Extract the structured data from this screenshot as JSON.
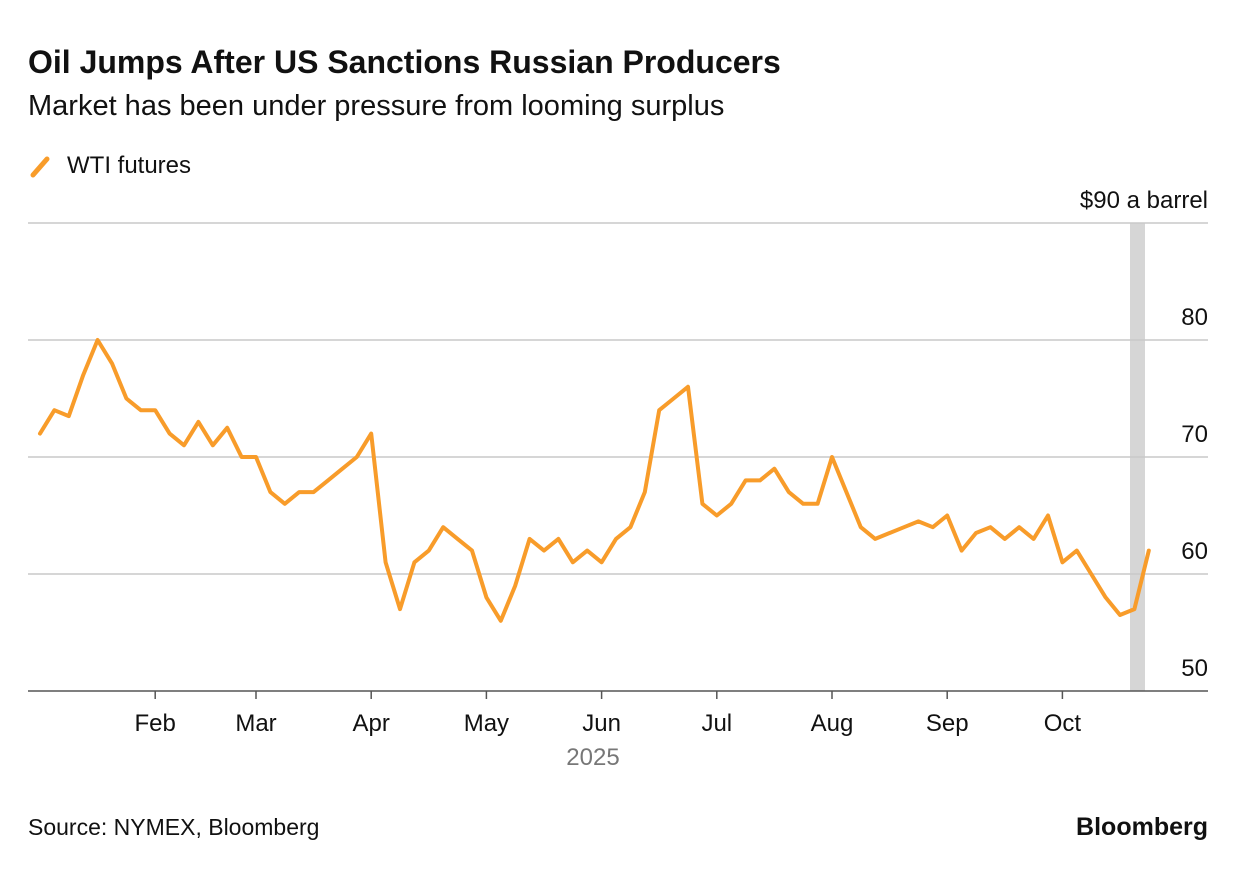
{
  "chart_data": {
    "type": "line",
    "title": "Oil Jumps After US Sanctions Russian Producers",
    "subtitle": "Market has been under pressure from looming surplus",
    "xlabel": "2025",
    "source": "Source: NYMEX, Bloomberg",
    "brand": "Bloomberg",
    "categories": [
      null,
      null,
      null,
      null,
      null,
      null,
      null,
      null,
      "Feb",
      null,
      null,
      null,
      null,
      null,
      null,
      "Mar",
      null,
      null,
      null,
      null,
      null,
      null,
      null,
      "Apr",
      null,
      null,
      null,
      null,
      null,
      null,
      null,
      "May",
      null,
      null,
      null,
      null,
      null,
      null,
      null,
      "Jun",
      null,
      null,
      null,
      null,
      null,
      null,
      null,
      "Jul",
      null,
      null,
      null,
      null,
      null,
      null,
      null,
      "Aug",
      null,
      null,
      null,
      null,
      null,
      null,
      null,
      "Sep",
      null,
      null,
      null,
      null,
      null,
      null,
      null,
      "Oct",
      null,
      null,
      null,
      null,
      null,
      null
    ],
    "series": [
      {
        "name": "WTI futures",
        "color": "#f89c2a",
        "values": [
          72,
          74,
          73.5,
          77,
          80,
          78,
          75,
          74,
          74,
          72,
          71,
          73,
          71,
          72.5,
          70,
          70,
          67,
          66,
          67,
          67,
          68,
          69,
          70,
          72,
          61,
          57,
          61,
          62,
          64,
          63,
          62,
          58,
          56,
          59,
          63,
          62,
          63,
          61,
          62,
          61,
          63,
          64,
          67,
          74,
          75,
          76,
          66,
          65,
          66,
          68,
          68,
          69,
          67,
          66,
          66,
          70,
          67,
          64,
          63,
          63.5,
          64,
          64.5,
          64,
          65,
          62,
          63.5,
          64,
          63,
          64,
          63,
          65,
          61,
          62,
          60,
          58,
          56.5,
          57,
          62
        ]
      }
    ],
    "ylim": [
      50,
      90
    ],
    "yticks": [
      50,
      60,
      70,
      80,
      {
        "value": 90,
        "label": "$90 a barrel"
      }
    ],
    "grid": true,
    "legend": "top-left"
  }
}
